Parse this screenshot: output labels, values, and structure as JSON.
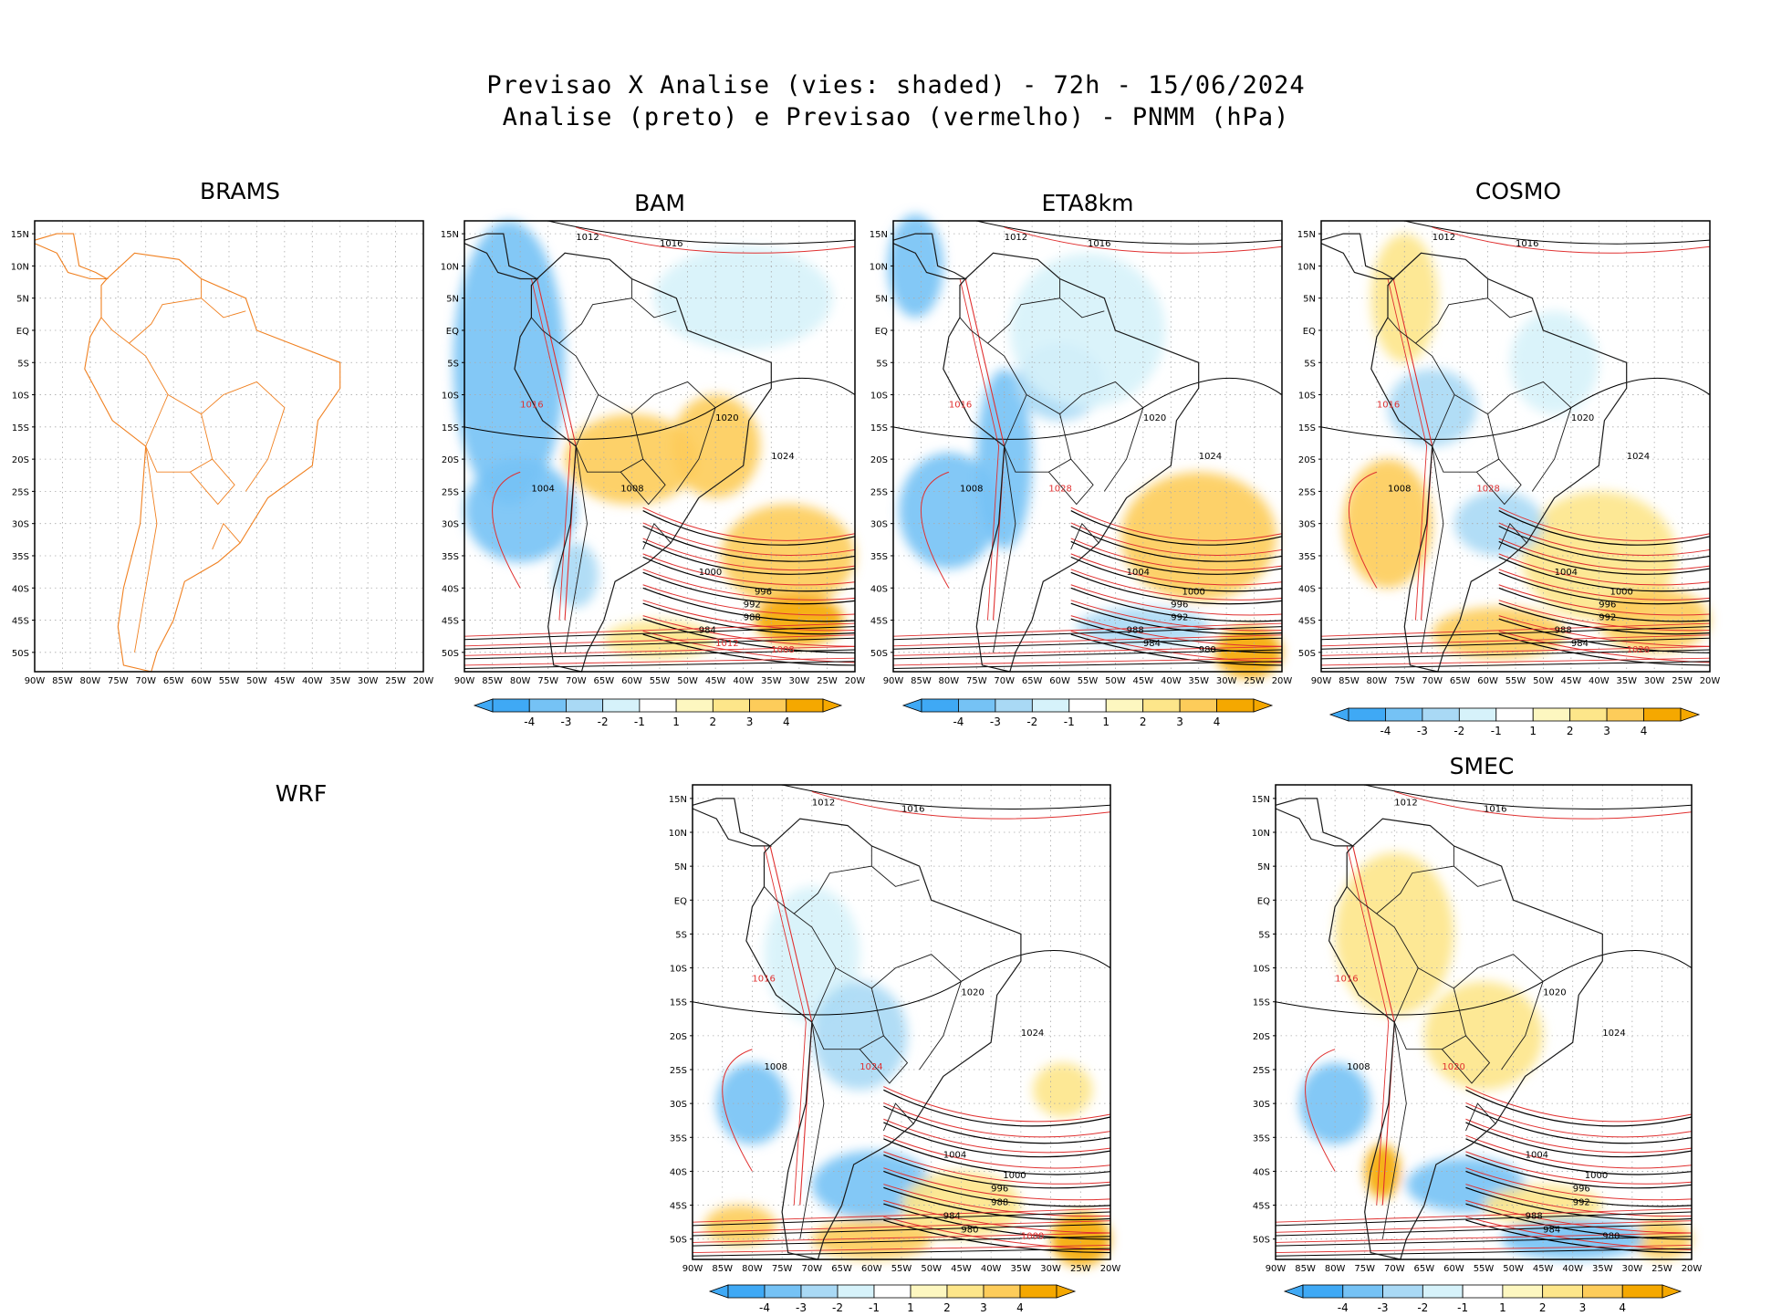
{
  "header": {
    "line1": "Previsao X Analise (vies: shaded) - 72h - 15/06/2024",
    "line2": "Analise (preto) e Previsao (vermelho) - PNMM (hPa)"
  },
  "axes": {
    "lat_labels": [
      "15N",
      "10N",
      "5N",
      "EQ",
      "5S",
      "10S",
      "15S",
      "20S",
      "25S",
      "30S",
      "35S",
      "40S",
      "45S",
      "50S"
    ],
    "lon_labels": [
      "90W",
      "85W",
      "80W",
      "75W",
      "70W",
      "65W",
      "60W",
      "55W",
      "50W",
      "45W",
      "40W",
      "35W",
      "30W",
      "25W",
      "20W"
    ]
  },
  "colorbar": {
    "labels": [
      "-4",
      "-3",
      "-2",
      "-1",
      "1",
      "2",
      "3",
      "4"
    ],
    "colors": [
      "#3fa9f5",
      "#75c2f5",
      "#a9d9f5",
      "#d6f2fa",
      "#ffffff",
      "#fdf7c0",
      "#fde68a",
      "#fdcc5a",
      "#f5a800"
    ]
  },
  "colors": {
    "analysis_contour": "#000000",
    "forecast_contour": "#e03030",
    "border": "#1a1a1a",
    "brams_border": "#f08020"
  },
  "panels": [
    {
      "id": "brams",
      "title": "BRAMS",
      "has_colorbar": false,
      "empty": false,
      "only_borders": true,
      "labels": []
    },
    {
      "id": "bam",
      "title": "BAM",
      "has_colorbar": true,
      "empty": false,
      "only_borders": false,
      "labels": [
        {
          "t": "1012",
          "c": "k"
        },
        {
          "t": "1016",
          "c": "k"
        },
        {
          "t": "1016",
          "c": "r"
        },
        {
          "t": "1020",
          "c": "k"
        },
        {
          "t": "1024",
          "c": "k"
        },
        {
          "t": "1008",
          "c": "k"
        },
        {
          "t": "1004",
          "c": "k"
        },
        {
          "t": "1000",
          "c": "k"
        },
        {
          "t": "996",
          "c": "k"
        },
        {
          "t": "992",
          "c": "k"
        },
        {
          "t": "988",
          "c": "k"
        },
        {
          "t": "984",
          "c": "k"
        },
        {
          "t": "1012",
          "c": "r"
        },
        {
          "t": "1008",
          "c": "r"
        }
      ]
    },
    {
      "id": "eta8km",
      "title": "ETA8km",
      "has_colorbar": true,
      "empty": false,
      "only_borders": false,
      "labels": [
        {
          "t": "1012",
          "c": "k"
        },
        {
          "t": "1016",
          "c": "k"
        },
        {
          "t": "1016",
          "c": "r"
        },
        {
          "t": "1020",
          "c": "k"
        },
        {
          "t": "1024",
          "c": "k"
        },
        {
          "t": "1028",
          "c": "r"
        },
        {
          "t": "1008",
          "c": "k"
        },
        {
          "t": "1004",
          "c": "k"
        },
        {
          "t": "1000",
          "c": "k"
        },
        {
          "t": "996",
          "c": "k"
        },
        {
          "t": "992",
          "c": "k"
        },
        {
          "t": "988",
          "c": "k"
        },
        {
          "t": "984",
          "c": "k"
        },
        {
          "t": "980",
          "c": "k"
        }
      ]
    },
    {
      "id": "cosmo",
      "title": "COSMO",
      "has_colorbar": true,
      "empty": false,
      "only_borders": false,
      "labels": [
        {
          "t": "1012",
          "c": "k"
        },
        {
          "t": "1016",
          "c": "k"
        },
        {
          "t": "1016",
          "c": "r"
        },
        {
          "t": "1020",
          "c": "k"
        },
        {
          "t": "1024",
          "c": "k"
        },
        {
          "t": "1028",
          "c": "r"
        },
        {
          "t": "1008",
          "c": "k"
        },
        {
          "t": "1004",
          "c": "k"
        },
        {
          "t": "1000",
          "c": "k"
        },
        {
          "t": "996",
          "c": "k"
        },
        {
          "t": "992",
          "c": "k"
        },
        {
          "t": "988",
          "c": "k"
        },
        {
          "t": "984",
          "c": "k"
        },
        {
          "t": "1020",
          "c": "r"
        }
      ]
    },
    {
      "id": "wrf",
      "title": "WRF",
      "has_colorbar": false,
      "empty": true,
      "only_borders": false,
      "labels": []
    },
    {
      "id": "wrf_map",
      "title": "",
      "has_colorbar": true,
      "empty": false,
      "only_borders": false,
      "labels": [
        {
          "t": "1012",
          "c": "k"
        },
        {
          "t": "1016",
          "c": "k"
        },
        {
          "t": "1016",
          "c": "r"
        },
        {
          "t": "1020",
          "c": "k"
        },
        {
          "t": "1024",
          "c": "k"
        },
        {
          "t": "1024",
          "c": "r"
        },
        {
          "t": "1008",
          "c": "k"
        },
        {
          "t": "1004",
          "c": "k"
        },
        {
          "t": "1000",
          "c": "k"
        },
        {
          "t": "996",
          "c": "k"
        },
        {
          "t": "988",
          "c": "k"
        },
        {
          "t": "984",
          "c": "k"
        },
        {
          "t": "980",
          "c": "k"
        },
        {
          "t": "1000",
          "c": "r"
        }
      ]
    },
    {
      "id": "smec",
      "title": "SMEC",
      "has_colorbar": true,
      "empty": false,
      "only_borders": false,
      "labels": [
        {
          "t": "1012",
          "c": "k"
        },
        {
          "t": "1016",
          "c": "k"
        },
        {
          "t": "1016",
          "c": "r"
        },
        {
          "t": "1020",
          "c": "k"
        },
        {
          "t": "1024",
          "c": "k"
        },
        {
          "t": "1020",
          "c": "r"
        },
        {
          "t": "1008",
          "c": "k"
        },
        {
          "t": "1004",
          "c": "k"
        },
        {
          "t": "1000",
          "c": "k"
        },
        {
          "t": "996",
          "c": "k"
        },
        {
          "t": "992",
          "c": "k"
        },
        {
          "t": "988",
          "c": "k"
        },
        {
          "t": "984",
          "c": "k"
        },
        {
          "t": "980",
          "c": "k"
        }
      ]
    }
  ]
}
